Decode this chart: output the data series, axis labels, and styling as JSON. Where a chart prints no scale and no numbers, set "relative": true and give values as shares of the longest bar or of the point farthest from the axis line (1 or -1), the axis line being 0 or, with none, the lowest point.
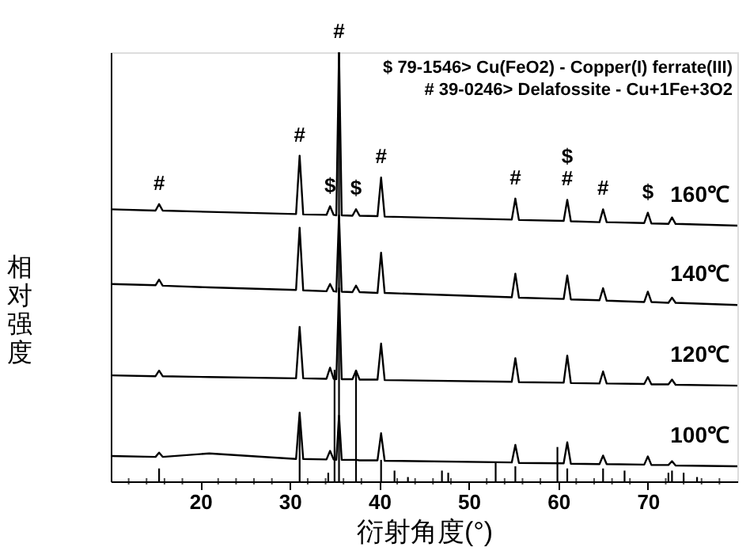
{
  "chart_data": {
    "type": "line",
    "relative": true,
    "xlabel": "衍射角度(°)",
    "ylabel": "相对强度",
    "xlim": [
      10,
      80
    ],
    "xticks": [
      {
        "value": 12,
        "label": null
      },
      {
        "value": 14,
        "label": null
      },
      {
        "value": 16,
        "label": null
      },
      {
        "value": 18,
        "label": null
      },
      20,
      {
        "value": 22,
        "label": null
      },
      {
        "value": 24,
        "label": null
      },
      {
        "value": 26,
        "label": null
      },
      {
        "value": 28,
        "label": null
      },
      30,
      {
        "value": 32,
        "label": null
      },
      {
        "value": 34,
        "label": null
      },
      {
        "value": 36,
        "label": null
      },
      {
        "value": 38,
        "label": null
      },
      40,
      {
        "value": 42,
        "label": null
      },
      {
        "value": 44,
        "label": null
      },
      {
        "value": 46,
        "label": null
      },
      {
        "value": 48,
        "label": null
      },
      50,
      {
        "value": 52,
        "label": null
      },
      {
        "value": 54,
        "label": null
      },
      {
        "value": 56,
        "label": null
      },
      {
        "value": 58,
        "label": null
      },
      60,
      {
        "value": 62,
        "label": null
      },
      {
        "value": 64,
        "label": null
      },
      {
        "value": 66,
        "label": null
      },
      {
        "value": 68,
        "label": null
      },
      70,
      {
        "value": 72,
        "label": null
      },
      {
        "value": 74,
        "label": null
      },
      {
        "value": 76,
        "label": null
      },
      {
        "value": 78,
        "label": null
      }
    ],
    "grid": false,
    "tick_labels": "x",
    "x": [
      10,
      15.0,
      15.4,
      15.8,
      21,
      30.7,
      31.1,
      31.5,
      34.1,
      34.5,
      34.9,
      35.2,
      35.5,
      35.8,
      37.0,
      37.4,
      37.8,
      39.8,
      40.2,
      40.6,
      54.8,
      55.2,
      55.6,
      60.6,
      61.0,
      61.4,
      64.6,
      65.0,
      65.4,
      69.6,
      70.0,
      70.4,
      72.3,
      72.7,
      73.1,
      80
    ],
    "series": [
      {
        "name": "160℃",
        "color": "#000000",
        "values": [
          0.634,
          0.631,
          0.646,
          0.631,
          0.628,
          0.623,
          0.759,
          0.622,
          0.621,
          0.641,
          0.621,
          0.62,
          1.0,
          0.62,
          0.619,
          0.634,
          0.619,
          0.618,
          0.708,
          0.617,
          0.61,
          0.659,
          0.609,
          0.607,
          0.656,
          0.606,
          0.604,
          0.634,
          0.604,
          0.602,
          0.626,
          0.601,
          0.6,
          0.615,
          0.6,
          0.596
        ]
      },
      {
        "name": "140℃",
        "color": "#000000",
        "values": [
          0.46,
          0.457,
          0.47,
          0.456,
          0.452,
          0.446,
          0.591,
          0.445,
          0.443,
          0.46,
          0.443,
          0.442,
          0.62,
          0.442,
          0.441,
          0.456,
          0.441,
          0.439,
          0.533,
          0.439,
          0.429,
          0.484,
          0.428,
          0.425,
          0.48,
          0.424,
          0.422,
          0.45,
          0.421,
          0.418,
          0.442,
          0.418,
          0.416,
          0.428,
          0.416,
          0.411
        ]
      },
      {
        "name": "120℃",
        "color": "#000000",
        "values": [
          0.247,
          0.245,
          0.258,
          0.245,
          0.243,
          0.24,
          0.36,
          0.24,
          0.239,
          0.265,
          0.239,
          0.238,
          0.45,
          0.238,
          0.238,
          0.258,
          0.237,
          0.237,
          0.321,
          0.236,
          0.232,
          0.287,
          0.231,
          0.23,
          0.293,
          0.229,
          0.228,
          0.256,
          0.228,
          0.227,
          0.243,
          0.226,
          0.226,
          0.237,
          0.225,
          0.223
        ]
      },
      {
        "name": "100℃",
        "color": "#000000",
        "values": [
          0.059,
          0.057,
          0.067,
          0.057,
          0.065,
          0.052,
          0.16,
          0.052,
          0.051,
          0.071,
          0.051,
          0.05,
          0.153,
          0.05,
          0.05,
          0.05,
          0.049,
          0.049,
          0.112,
          0.048,
          0.044,
          0.085,
          0.043,
          0.042,
          0.091,
          0.041,
          0.04,
          0.06,
          0.04,
          0.039,
          0.058,
          0.038,
          0.038,
          0.047,
          0.037,
          0.035
        ]
      },
      {
        "type": "bar",
        "color": "#000000",
        "x": [
          15.4,
          31.1,
          34.3,
          35.0,
          35.5,
          37.4,
          40.2,
          41.7,
          43.2,
          47.0,
          47.7,
          53.0,
          55.2,
          59.9,
          61.0,
          65.0,
          67.4,
          72.3,
          72.7,
          74.0,
          75.5
        ],
        "values": [
          0.03,
          0.14,
          0.02,
          0.26,
          1.0,
          0.26,
          0.05,
          0.025,
          0.01,
          0.025,
          0.02,
          0.045,
          0.035,
          0.08,
          0.03,
          0.03,
          0.025,
          0.02,
          0.025,
          0.02,
          0.01
        ]
      }
    ],
    "annotations": [
      "$ 79-1546> Cu(FeO2) - Copper(I) ferrate(III)",
      "# 39-0246> Delafossite - Cu+1Fe+3O2",
      {
        "text": "#",
        "x": 15.4,
        "y": 0.646
      },
      {
        "text": "#",
        "x": 31.1,
        "y": 0.759
      },
      {
        "text": "$",
        "x": 34.5,
        "y": 0.641
      },
      {
        "text": "#",
        "x": 35.5,
        "y": 1.0
      },
      {
        "text": "$",
        "x": 37.4,
        "y": 0.634
      },
      {
        "text": "#",
        "x": 40.2,
        "y": 0.708
      },
      {
        "text": "#",
        "x": 55.2,
        "y": 0.659
      },
      {
        "text": "#",
        "x": 61.0,
        "y": 0.656
      },
      {
        "text": "$",
        "x": 61.0,
        "y": 0.656
      },
      {
        "text": "#",
        "x": 65.0,
        "y": 0.634
      },
      {
        "text": "$",
        "x": 70.0,
        "y": 0.626
      }
    ]
  }
}
